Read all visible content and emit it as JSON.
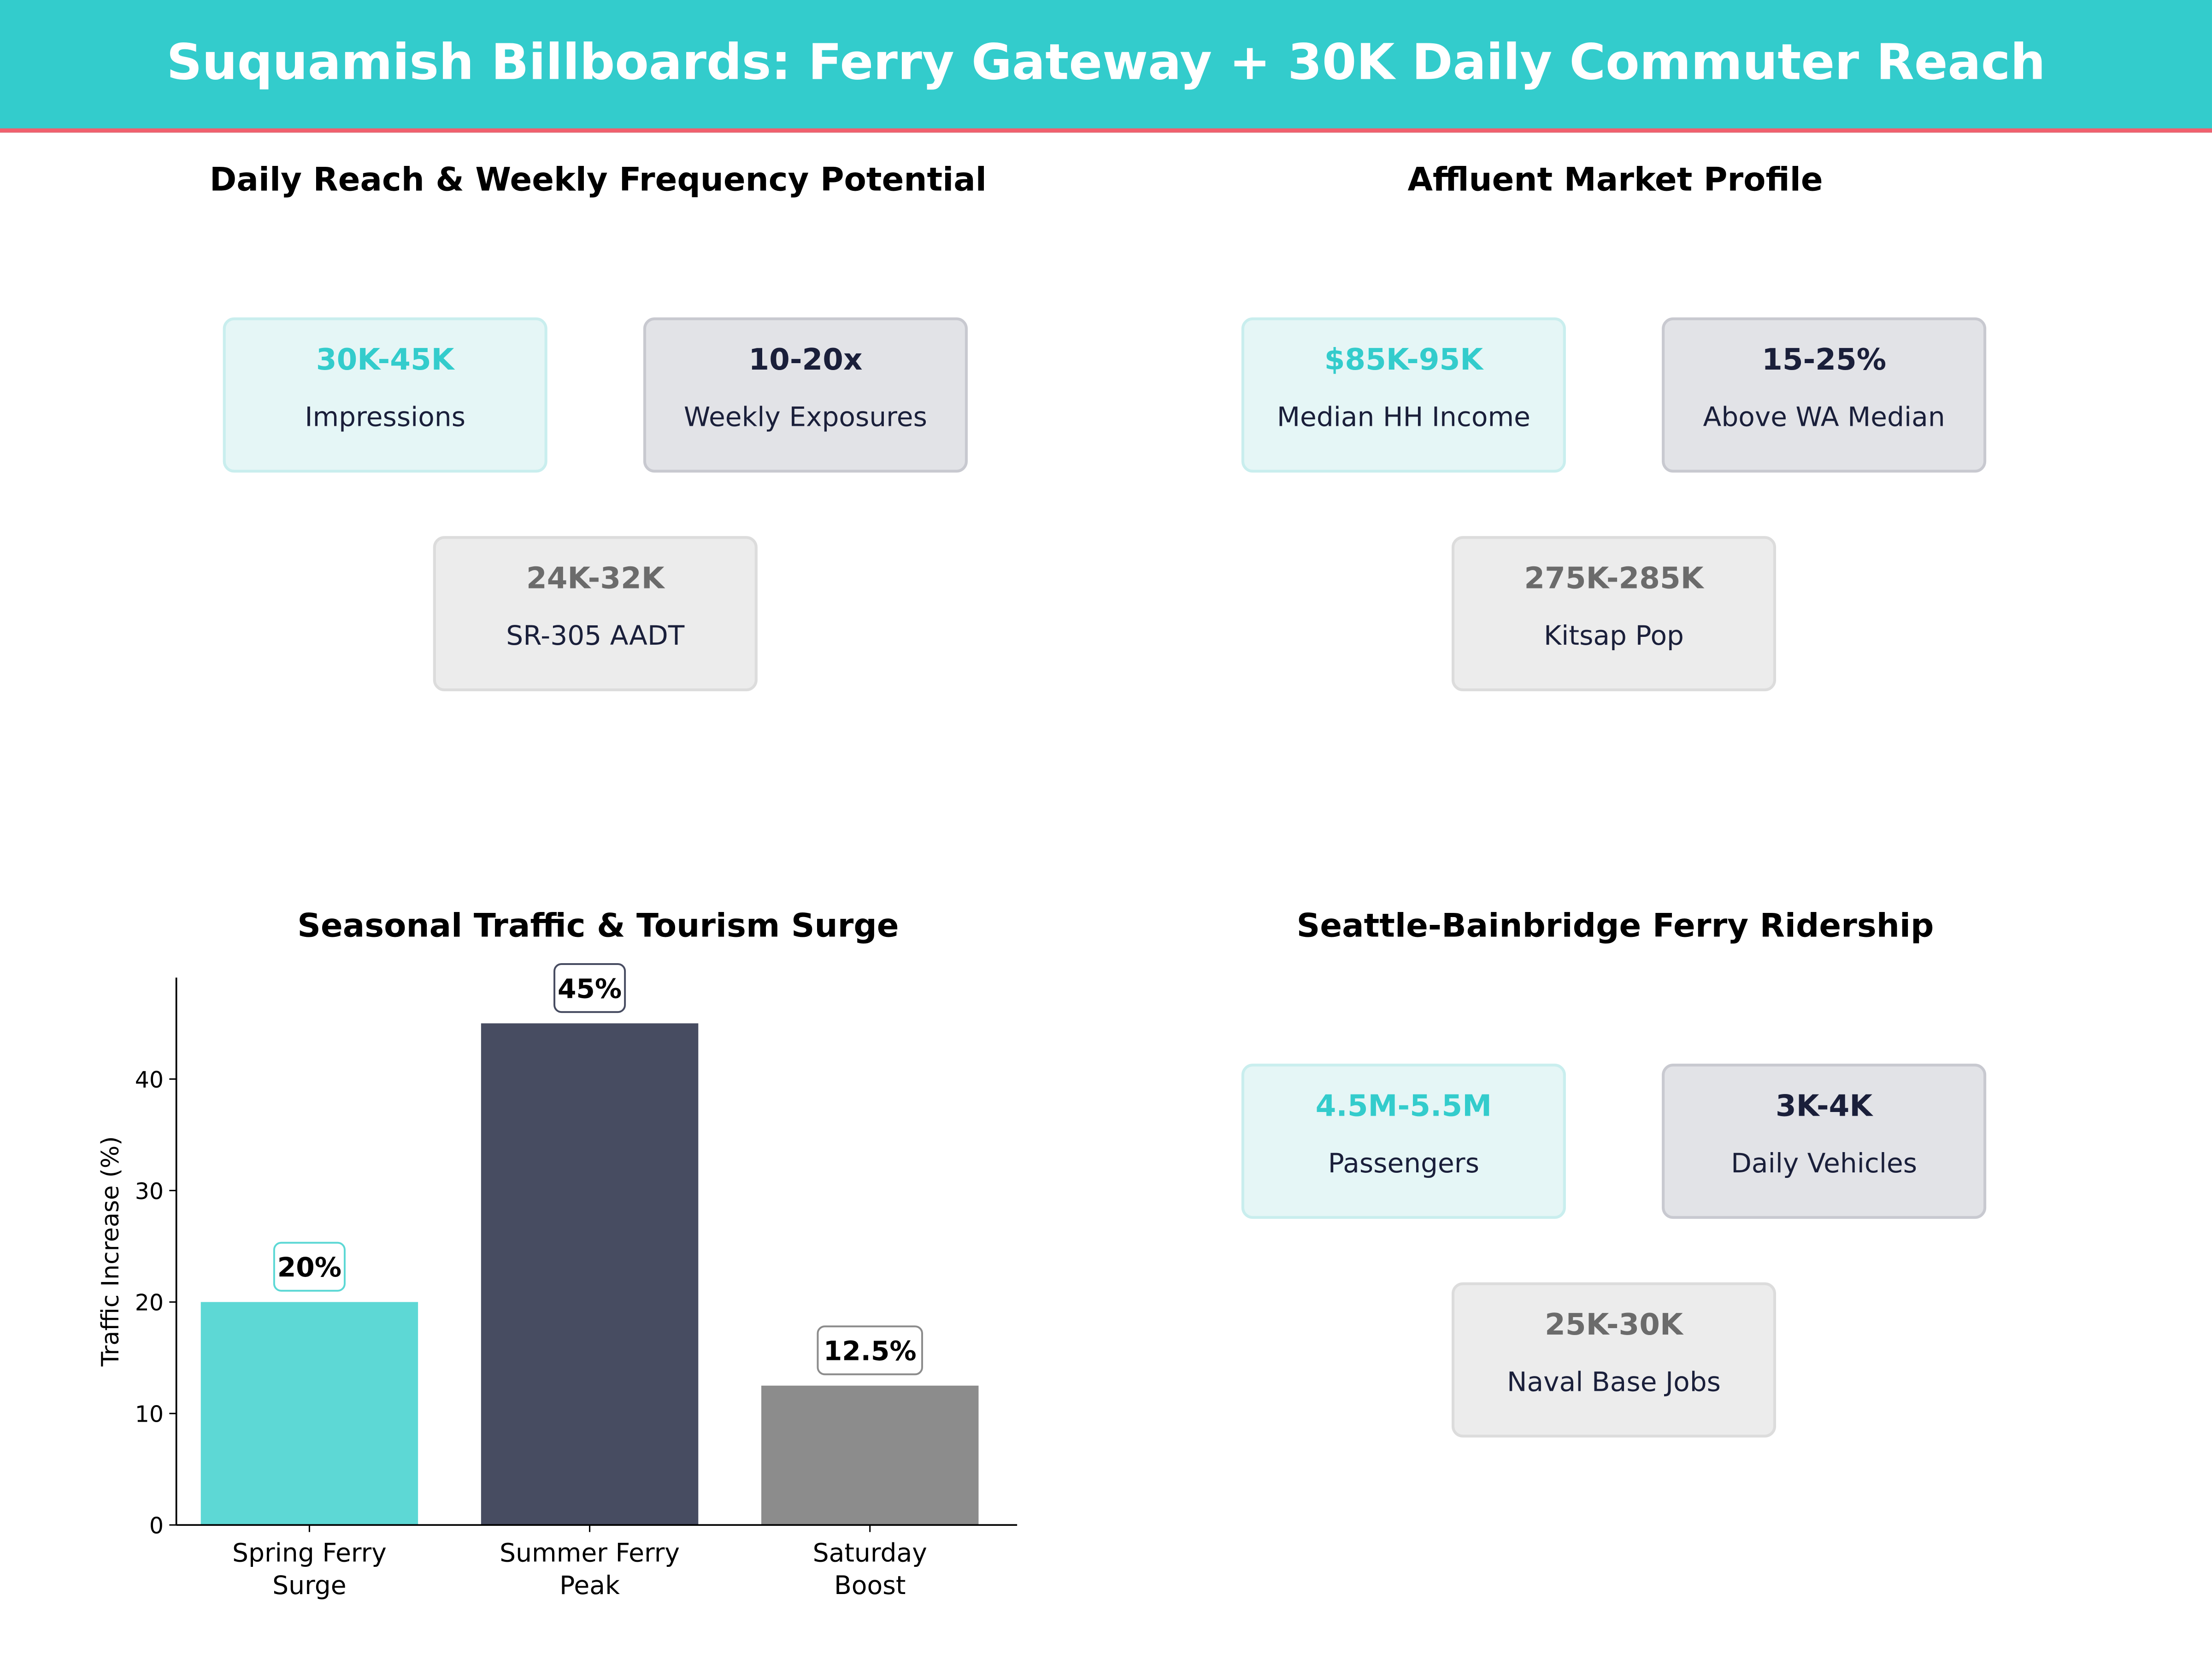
{
  "title": "Suquamish Billboards: Ferry Gateway + 30K Daily Commuter Reach",
  "colors": {
    "accent": "#33cccc",
    "underline": "#f0606e",
    "dark": "#474c61",
    "gray": "#8c8c8c",
    "bar_teal": "#5dd8d5"
  },
  "panels": [
    {
      "title": "Daily Reach & Weekly Frequency Potential",
      "cards": [
        {
          "value": "30K-45K",
          "label": "Impressions"
        },
        {
          "value": "10-20x",
          "label": "Weekly Exposures"
        },
        {
          "value": "24K-32K",
          "label": "SR-305 AADT"
        }
      ]
    },
    {
      "title": "Affluent Market Profile",
      "cards": [
        {
          "value": "$85K-95K",
          "label": "Median HH Income"
        },
        {
          "value": "15-25%",
          "label": "Above WA Median"
        },
        {
          "value": "275K-285K",
          "label": "Kitsap Pop"
        }
      ]
    },
    {
      "title": "Seattle-Bainbridge Ferry Ridership",
      "cards": [
        {
          "value": "4.5M-5.5M",
          "label": "Passengers"
        },
        {
          "value": "3K-4K",
          "label": "Daily Vehicles"
        },
        {
          "value": "25K-30K",
          "label": "Naval Base Jobs"
        }
      ]
    }
  ],
  "chart_data": {
    "type": "bar",
    "title": "Seasonal Traffic & Tourism Surge",
    "categories": [
      "Spring Ferry\nSurge",
      "Summer Ferry\nPeak",
      "Saturday\nBoost"
    ],
    "values": [
      20,
      45,
      12.5
    ],
    "data_labels": [
      "20%",
      "45%",
      "12.5%"
    ],
    "bar_colors": [
      "#5dd8d5",
      "#474c61",
      "#8c8c8c"
    ],
    "xlabel": "",
    "ylabel": "Traffic Increase (%)",
    "ylim": [
      0,
      49.1
    ],
    "yticks": [
      0,
      10,
      20,
      30,
      40
    ],
    "grid": false
  }
}
